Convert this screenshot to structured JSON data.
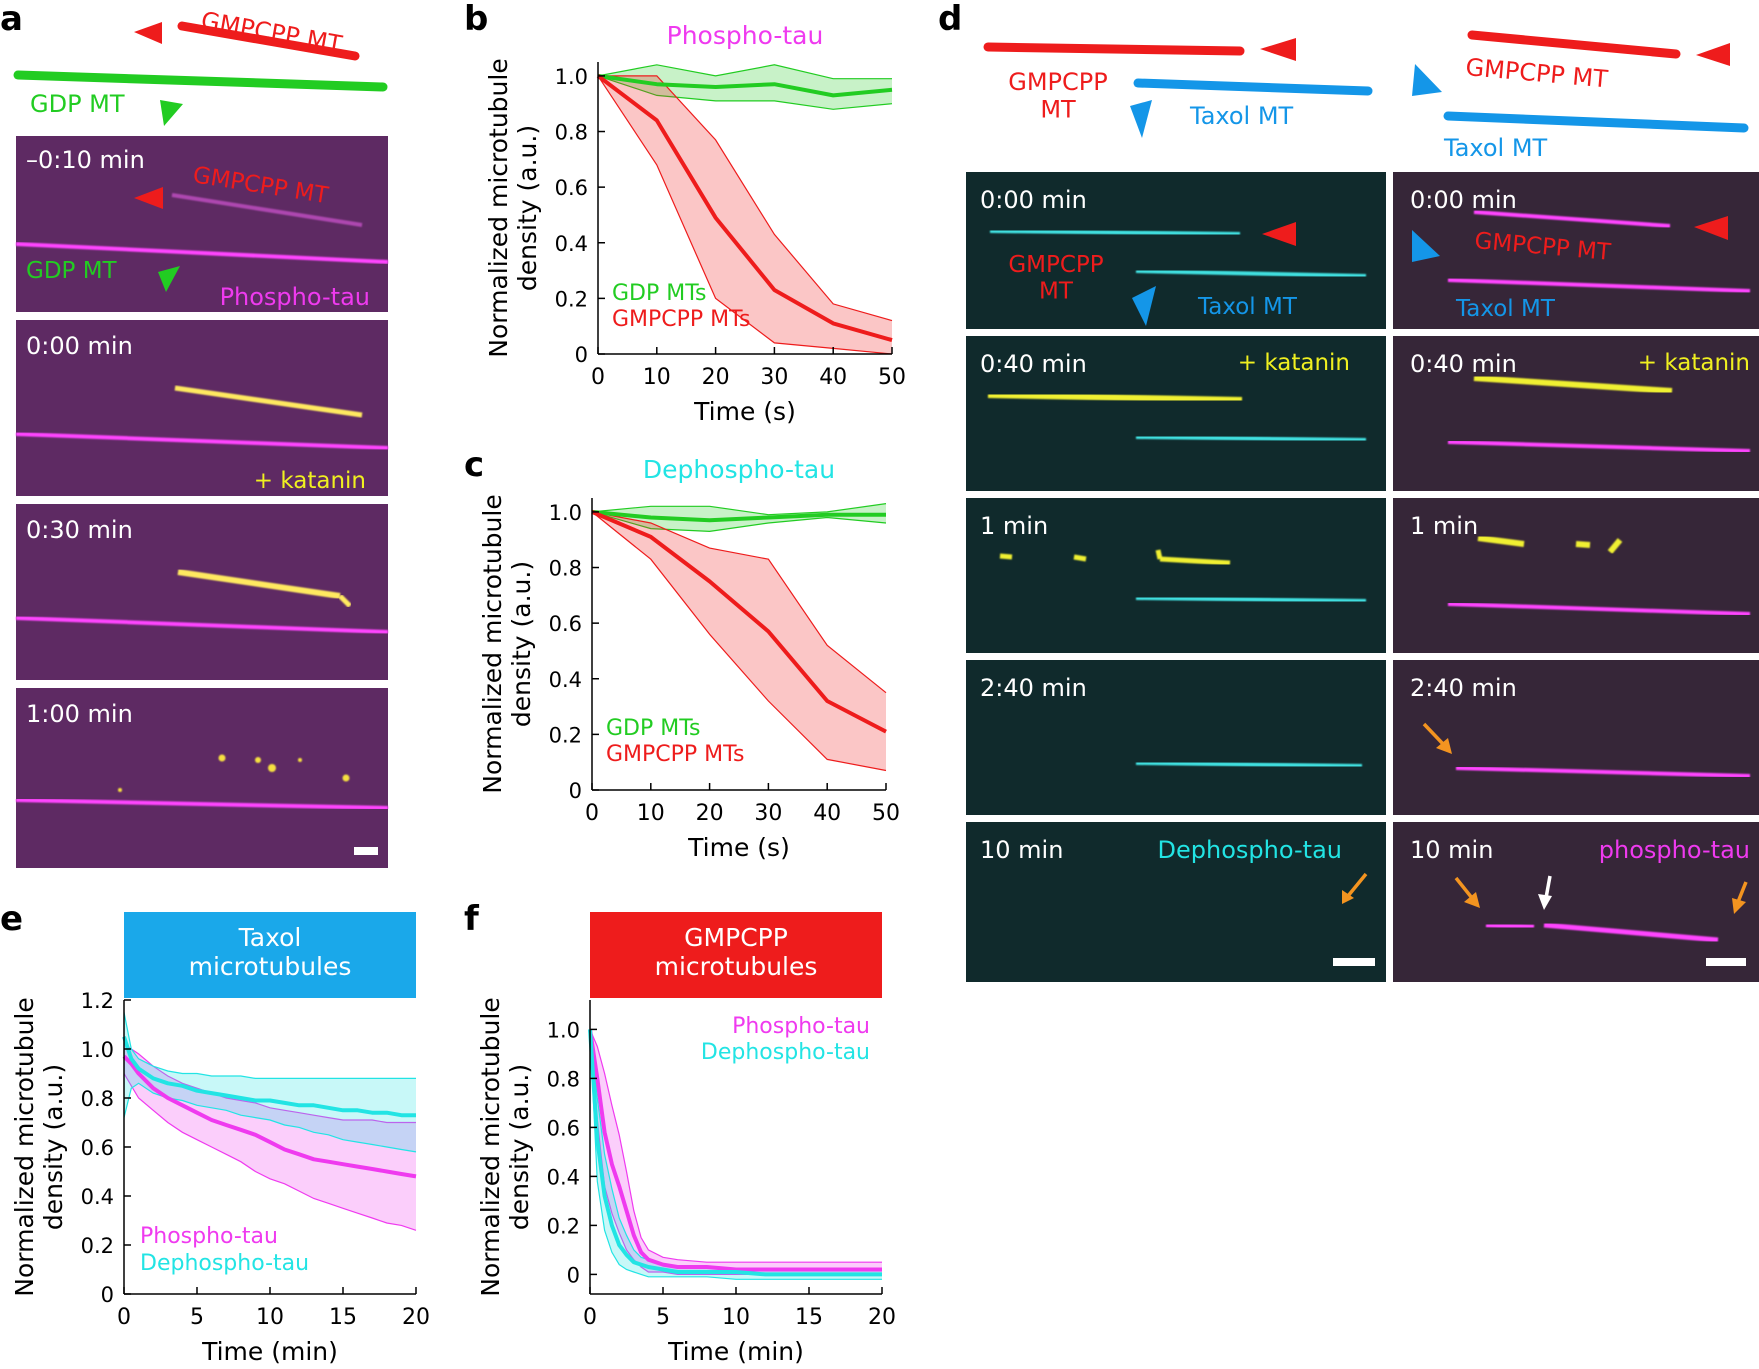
{
  "figure": {
    "panel_letters": [
      "a",
      "b",
      "c",
      "d",
      "e",
      "f"
    ]
  },
  "colors": {
    "red": "#ee1c1c",
    "green": "#22cc22",
    "blue": "#1496e8",
    "magenta": "#ef3aef",
    "cyan": "#22e4e4",
    "yellow": "#f0f020",
    "orange": "#f39420",
    "white": "#ffffff",
    "bg_a": "#5e2a63",
    "bg_d_left": "#102a2c",
    "bg_d_right": "#362638"
  },
  "panel_a": {
    "schematic": {
      "gmpcpp_label": "GMPCPP MT",
      "gdp_label": "GDP MT"
    },
    "frames": [
      {
        "time": "–0:10 min",
        "gmpcpp_label": "GMPCPP MT",
        "gdp_label": "GDP MT",
        "tau_label": "Phospho-tau"
      },
      {
        "time": "0:00 min",
        "katanin_label": "+ katanin"
      },
      {
        "time": "0:30 min"
      },
      {
        "time": "1:00 min"
      }
    ]
  },
  "panel_d": {
    "schematic": {
      "gmpcpp_label_left": "GMPCPP\nMT",
      "gmpcpp_label_right": "GMPCPP MT",
      "taxol_label": "Taxol MT"
    },
    "left_frames": [
      {
        "time": "0:00 min",
        "gmpcpp_label": "GMPCPP\nMT",
        "taxol_label": "Taxol MT"
      },
      {
        "time": "0:40 min",
        "katanin_label": "+ katanin"
      },
      {
        "time": "1 min"
      },
      {
        "time": "2:40 min"
      },
      {
        "time": "10 min",
        "tau_label": "Dephospho-tau"
      }
    ],
    "right_frames": [
      {
        "time": "0:00 min",
        "gmpcpp_label": "GMPCPP MT",
        "taxol_label": "Taxol MT"
      },
      {
        "time": "0:40 min",
        "katanin_label": "+ katanin"
      },
      {
        "time": "1 min"
      },
      {
        "time": "2:40 min"
      },
      {
        "time": "10 min",
        "tau_label": "phospho-tau"
      }
    ]
  },
  "chart_data": [
    {
      "id": "b",
      "type": "line",
      "title": "Phospho-tau",
      "xlabel": "Time (s)",
      "ylabel": "Normalized microtubule density (a.u.)",
      "xlim": [
        0,
        50
      ],
      "ylim": [
        0,
        1.05
      ],
      "xticks": [
        0,
        10,
        20,
        30,
        40,
        50
      ],
      "yticks": [
        0,
        0.2,
        0.4,
        0.6,
        0.8,
        1.0
      ],
      "x": [
        0,
        10,
        20,
        30,
        40,
        50
      ],
      "series": [
        {
          "name": "GDP MTs",
          "color": "#22cc22",
          "values": [
            1.0,
            0.97,
            0.96,
            0.97,
            0.93,
            0.95
          ],
          "upper": [
            1.0,
            1.04,
            1.0,
            1.04,
            0.99,
            0.99
          ],
          "lower": [
            1.0,
            0.93,
            0.91,
            0.91,
            0.88,
            0.9
          ]
        },
        {
          "name": "GMPCPP MTs",
          "color": "#ee1c1c",
          "values": [
            1.0,
            0.84,
            0.49,
            0.23,
            0.11,
            0.05
          ],
          "upper": [
            1.0,
            1.0,
            0.77,
            0.43,
            0.18,
            0.12
          ],
          "lower": [
            1.0,
            0.68,
            0.2,
            0.04,
            0.02,
            0.0
          ]
        }
      ]
    },
    {
      "id": "c",
      "type": "line",
      "title": "Dephospho-tau",
      "xlabel": "Time (s)",
      "ylabel": "Normalized microtubule density (a.u.)",
      "xlim": [
        0,
        50
      ],
      "ylim": [
        0,
        1.05
      ],
      "xticks": [
        0,
        10,
        20,
        30,
        40,
        50
      ],
      "yticks": [
        0,
        0.2,
        0.4,
        0.6,
        0.8,
        1.0
      ],
      "x": [
        0,
        10,
        20,
        30,
        40,
        50
      ],
      "series": [
        {
          "name": "GDP MTs",
          "color": "#22cc22",
          "values": [
            1.0,
            0.98,
            0.97,
            0.98,
            0.99,
            0.99
          ],
          "upper": [
            1.0,
            1.02,
            1.02,
            0.99,
            1.0,
            1.03
          ],
          "lower": [
            1.0,
            0.94,
            0.93,
            0.96,
            0.98,
            0.96
          ]
        },
        {
          "name": "GMPCPP MTs",
          "color": "#ee1c1c",
          "values": [
            1.0,
            0.91,
            0.75,
            0.57,
            0.32,
            0.21
          ],
          "upper": [
            1.0,
            0.96,
            0.87,
            0.83,
            0.52,
            0.35
          ],
          "lower": [
            1.0,
            0.83,
            0.56,
            0.32,
            0.11,
            0.07
          ]
        }
      ]
    },
    {
      "id": "e",
      "type": "line",
      "title": "Taxol\nmicrotubules",
      "xlabel": "Time (min)",
      "ylabel": "Normalized microtubule density (a.u.)",
      "xlim": [
        0,
        20
      ],
      "ylim": [
        0,
        1.2
      ],
      "xticks": [
        0,
        5,
        10,
        15,
        20
      ],
      "yticks": [
        0,
        0.2,
        0.4,
        0.6,
        0.8,
        1.0,
        1.2
      ],
      "x": [
        0,
        0.5,
        1,
        2,
        3,
        4,
        5,
        6,
        7,
        8,
        9,
        10,
        11,
        12,
        13,
        14,
        15,
        16,
        17,
        18,
        19,
        20
      ],
      "series": [
        {
          "name": "Phospho-tau",
          "color": "#ef3aef",
          "values": [
            0.97,
            0.94,
            0.9,
            0.84,
            0.8,
            0.77,
            0.74,
            0.71,
            0.69,
            0.67,
            0.65,
            0.62,
            0.59,
            0.57,
            0.55,
            0.54,
            0.53,
            0.52,
            0.51,
            0.5,
            0.49,
            0.48
          ],
          "upper": [
            1.02,
            1.0,
            0.98,
            0.93,
            0.89,
            0.86,
            0.84,
            0.82,
            0.8,
            0.79,
            0.78,
            0.76,
            0.75,
            0.74,
            0.73,
            0.72,
            0.71,
            0.71,
            0.71,
            0.7,
            0.7,
            0.7
          ],
          "lower": [
            0.9,
            0.85,
            0.8,
            0.75,
            0.7,
            0.66,
            0.63,
            0.6,
            0.57,
            0.54,
            0.5,
            0.47,
            0.45,
            0.42,
            0.39,
            0.37,
            0.35,
            0.33,
            0.31,
            0.29,
            0.28,
            0.26
          ]
        },
        {
          "name": "Dephospho-tau",
          "color": "#22e4e4",
          "values": [
            1.05,
            0.96,
            0.92,
            0.88,
            0.86,
            0.85,
            0.83,
            0.82,
            0.81,
            0.8,
            0.79,
            0.79,
            0.78,
            0.77,
            0.77,
            0.76,
            0.75,
            0.75,
            0.74,
            0.74,
            0.73,
            0.73
          ],
          "upper": [
            1.15,
            1.0,
            0.96,
            0.93,
            0.91,
            0.9,
            0.9,
            0.89,
            0.89,
            0.89,
            0.88,
            0.88,
            0.88,
            0.88,
            0.88,
            0.88,
            0.88,
            0.88,
            0.88,
            0.88,
            0.88,
            0.88
          ],
          "lower": [
            0.72,
            0.84,
            0.86,
            0.82,
            0.8,
            0.79,
            0.77,
            0.76,
            0.75,
            0.73,
            0.72,
            0.71,
            0.69,
            0.68,
            0.66,
            0.65,
            0.63,
            0.62,
            0.61,
            0.6,
            0.59,
            0.58
          ]
        }
      ]
    },
    {
      "id": "f",
      "type": "line",
      "title": "GMPCPP\nmicrotubules",
      "xlabel": "Time (min)",
      "ylabel": "Normalized microtubule density (a.u.)",
      "xlim": [
        0,
        20
      ],
      "ylim": [
        -0.08,
        1.12
      ],
      "xticks": [
        0,
        5,
        10,
        15,
        20
      ],
      "yticks": [
        0,
        0.2,
        0.4,
        0.6,
        0.8,
        1.0
      ],
      "x": [
        0,
        0.5,
        1,
        1.5,
        2,
        2.5,
        3,
        3.5,
        4,
        5,
        6,
        8,
        10,
        12,
        15,
        18,
        20
      ],
      "series": [
        {
          "name": "Phospho-tau",
          "color": "#ef3aef",
          "values": [
            1.0,
            0.8,
            0.58,
            0.45,
            0.36,
            0.26,
            0.16,
            0.09,
            0.06,
            0.04,
            0.03,
            0.03,
            0.02,
            0.02,
            0.02,
            0.02,
            0.02
          ],
          "upper": [
            1.0,
            0.93,
            0.82,
            0.69,
            0.57,
            0.42,
            0.26,
            0.15,
            0.1,
            0.07,
            0.06,
            0.05,
            0.05,
            0.05,
            0.05,
            0.05,
            0.05
          ],
          "lower": [
            1.0,
            0.63,
            0.36,
            0.25,
            0.17,
            0.1,
            0.06,
            0.03,
            0.01,
            0.01,
            0.0,
            0.0,
            0.0,
            0.0,
            0.0,
            0.0,
            0.0
          ]
        },
        {
          "name": "Dephospho-tau",
          "color": "#22e4e4",
          "values": [
            1.0,
            0.55,
            0.32,
            0.2,
            0.12,
            0.08,
            0.05,
            0.04,
            0.03,
            0.02,
            0.01,
            0.01,
            0.01,
            0.0,
            0.0,
            0.0,
            0.0
          ],
          "upper": [
            1.0,
            0.72,
            0.49,
            0.35,
            0.23,
            0.16,
            0.1,
            0.07,
            0.06,
            0.04,
            0.03,
            0.03,
            0.02,
            0.02,
            0.02,
            0.02,
            0.02
          ],
          "lower": [
            1.0,
            0.38,
            0.18,
            0.09,
            0.04,
            0.02,
            0.01,
            0.0,
            -0.01,
            -0.01,
            -0.01,
            -0.01,
            -0.02,
            -0.02,
            -0.02,
            -0.02,
            -0.02
          ]
        }
      ]
    }
  ]
}
